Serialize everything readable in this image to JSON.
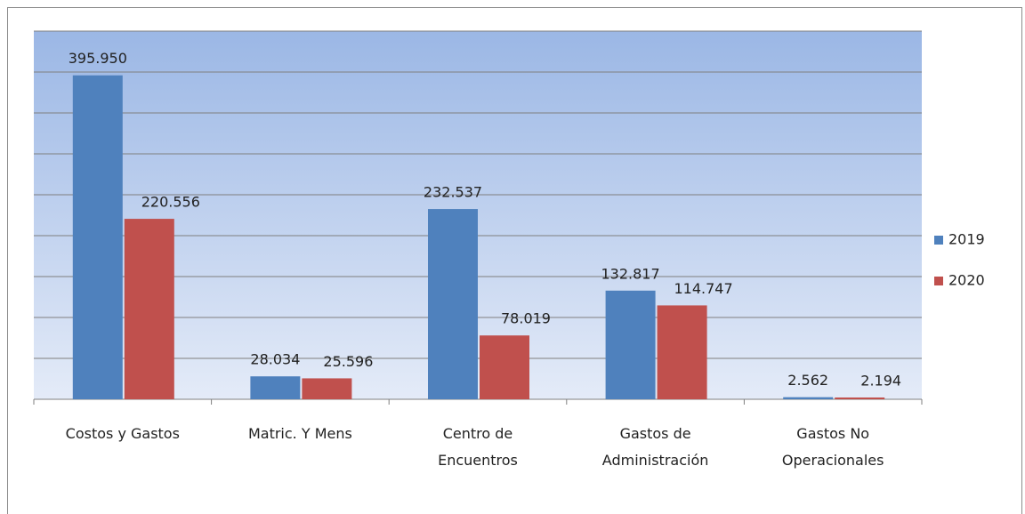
{
  "chart_data": {
    "type": "bar",
    "categories": [
      "Costos y Gastos",
      "Matric. Y Mens",
      "Centro de\nEncuentros",
      "Gastos de\nAdministración",
      "Gastos No\nOperacionales"
    ],
    "series": [
      {
        "name": "2019",
        "color": "#4f81bd",
        "values": [
          395950,
          28034,
          232537,
          132817,
          2562
        ],
        "value_labels": [
          "395.950",
          "28.034",
          "232.537",
          "132.817",
          "2.562"
        ]
      },
      {
        "name": "2020",
        "color": "#c0504d",
        "values": [
          220556,
          25596,
          78019,
          114747,
          2194
        ],
        "value_labels": [
          "220.556",
          "25.596",
          "78.019",
          "114.747",
          "2.194"
        ]
      }
    ],
    "ylim": [
      0,
      450000
    ],
    "yticks": [
      0,
      50000,
      100000,
      150000,
      200000,
      250000,
      300000,
      350000,
      400000,
      450000
    ],
    "grid": true,
    "legend": "right"
  }
}
